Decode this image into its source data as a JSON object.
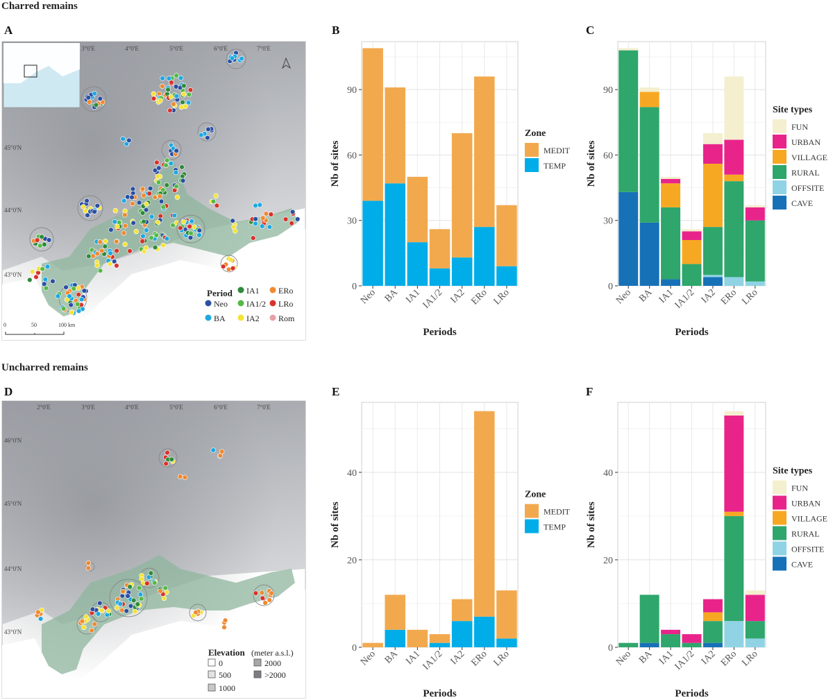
{
  "sections": {
    "charred": "Charred remains",
    "uncharred": "Uncharred remains"
  },
  "panels": {
    "A": "A",
    "B": "B",
    "C": "C",
    "D": "D",
    "E": "E",
    "F": "F"
  },
  "colors": {
    "MEDIT": "#f2a94e",
    "TEMP": "#00ade8",
    "FUN": "#f4efcf",
    "URBAN": "#e8248b",
    "VILLAGE": "#f7a823",
    "RURAL": "#2ea66c",
    "OFFSITE": "#8fd3e4",
    "CAVE": "#1771b7",
    "Neo": "#2b4fa1",
    "BA": "#1fa8e0",
    "IA1": "#2f8a3b",
    "IA1/2": "#55b947",
    "IA2": "#f3e33a",
    "ERo": "#ee8a34",
    "LRo": "#d7332c",
    "Rom": "#e8a0a4"
  },
  "maps": {
    "A": {
      "lon_labels": [
        "3°0'E",
        "4°0'E",
        "5°0'E",
        "6°0'E",
        "7°0'E"
      ],
      "lat_labels": [
        "45°0'N",
        "44°0'N",
        "43°0'N"
      ],
      "scale_labels": [
        "0",
        "50",
        "100 km"
      ],
      "legend_title": "Period",
      "legend_items": [
        "Neo",
        "BA",
        "IA1",
        "IA1/2",
        "IA2",
        "ERo",
        "LRo",
        "Rom"
      ]
    },
    "D": {
      "lon_labels": [
        "2°0'E",
        "3°0'E",
        "4°0'E",
        "5°0'E",
        "6°0'E",
        "7°0'E"
      ],
      "lat_labels": [
        "46°0'N",
        "45°0'N",
        "44°0'N",
        "43°0'N"
      ],
      "legend_title": "Elevation",
      "legend_unit": "(meter a.s.l.)",
      "legend_items": [
        "0",
        "500",
        "1000",
        "2000",
        ">2000"
      ]
    }
  },
  "chart_data": [
    {
      "panel": "B",
      "type": "bar",
      "stacked": true,
      "categories": [
        "Neo",
        "BA",
        "IA1",
        "IA1/2",
        "IA2",
        "ERo",
        "LRo"
      ],
      "series": [
        {
          "name": "TEMP",
          "values": [
            39,
            47,
            20,
            8,
            13,
            27,
            9
          ]
        },
        {
          "name": "MEDIT",
          "values": [
            70,
            44,
            30,
            18,
            57,
            69,
            28
          ]
        }
      ],
      "xlabel": "Periods",
      "ylabel": "Nb of sites",
      "ylim": [
        0,
        112
      ],
      "yticks": [
        0,
        30,
        60,
        90
      ],
      "legend_title": "Zone",
      "legend": [
        "MEDIT",
        "TEMP"
      ]
    },
    {
      "panel": "C",
      "type": "bar",
      "stacked": true,
      "categories": [
        "Neo",
        "BA",
        "IA1",
        "IA1/2",
        "IA2",
        "ERo",
        "LRo"
      ],
      "series": [
        {
          "name": "CAVE",
          "values": [
            43,
            29,
            3,
            0,
            4,
            0,
            0
          ]
        },
        {
          "name": "OFFSITE",
          "values": [
            0,
            0,
            0,
            0,
            1,
            4,
            2
          ]
        },
        {
          "name": "RURAL",
          "values": [
            65,
            53,
            33,
            10,
            22,
            44,
            28
          ]
        },
        {
          "name": "VILLAGE",
          "values": [
            0,
            7,
            11,
            11,
            29,
            3,
            0
          ]
        },
        {
          "name": "URBAN",
          "values": [
            0,
            0,
            2,
            4,
            9,
            16,
            6
          ]
        },
        {
          "name": "FUN",
          "values": [
            1,
            2,
            1,
            1,
            5,
            29,
            1
          ]
        }
      ],
      "xlabel": "Periods",
      "ylabel": "Nb of sites",
      "ylim": [
        0,
        112
      ],
      "yticks": [
        0,
        30,
        60,
        90
      ],
      "legend_title": "Site types",
      "legend": [
        "FUN",
        "URBAN",
        "VILLAGE",
        "RURAL",
        "OFFSITE",
        "CAVE"
      ]
    },
    {
      "panel": "E",
      "type": "bar",
      "stacked": true,
      "categories": [
        "Neo",
        "BA",
        "IA1",
        "IA1/2",
        "IA2",
        "ERo",
        "LRo"
      ],
      "series": [
        {
          "name": "TEMP",
          "values": [
            0,
            4,
            0,
            1,
            6,
            7,
            2
          ]
        },
        {
          "name": "MEDIT",
          "values": [
            1,
            8,
            4,
            2,
            5,
            47,
            11
          ]
        }
      ],
      "xlabel": "Periods",
      "ylabel": "Nb of sites",
      "ylim": [
        0,
        56
      ],
      "yticks": [
        0,
        20,
        40
      ],
      "legend_title": "Zone",
      "legend": [
        "MEDIT",
        "TEMP"
      ]
    },
    {
      "panel": "F",
      "type": "bar",
      "stacked": true,
      "categories": [
        "Neo",
        "BA",
        "IA1",
        "IA1/2",
        "IA2",
        "ERo",
        "LRo"
      ],
      "series": [
        {
          "name": "CAVE",
          "values": [
            0,
            1,
            0,
            0,
            1,
            0,
            0
          ]
        },
        {
          "name": "OFFSITE",
          "values": [
            0,
            0,
            0,
            0,
            0,
            6,
            2
          ]
        },
        {
          "name": "RURAL",
          "values": [
            1,
            11,
            3,
            1,
            5,
            24,
            4
          ]
        },
        {
          "name": "VILLAGE",
          "values": [
            0,
            0,
            0,
            0,
            2,
            1,
            0
          ]
        },
        {
          "name": "URBAN",
          "values": [
            0,
            0,
            1,
            2,
            3,
            22,
            6
          ]
        },
        {
          "name": "FUN",
          "values": [
            0,
            0,
            0,
            0,
            0,
            1,
            1
          ]
        }
      ],
      "xlabel": "Periods",
      "ylabel": "Nb of sites",
      "ylim": [
        0,
        56
      ],
      "yticks": [
        0,
        20,
        40
      ],
      "legend_title": "Site types",
      "legend": [
        "FUN",
        "URBAN",
        "VILLAGE",
        "RURAL",
        "OFFSITE",
        "CAVE"
      ]
    }
  ]
}
